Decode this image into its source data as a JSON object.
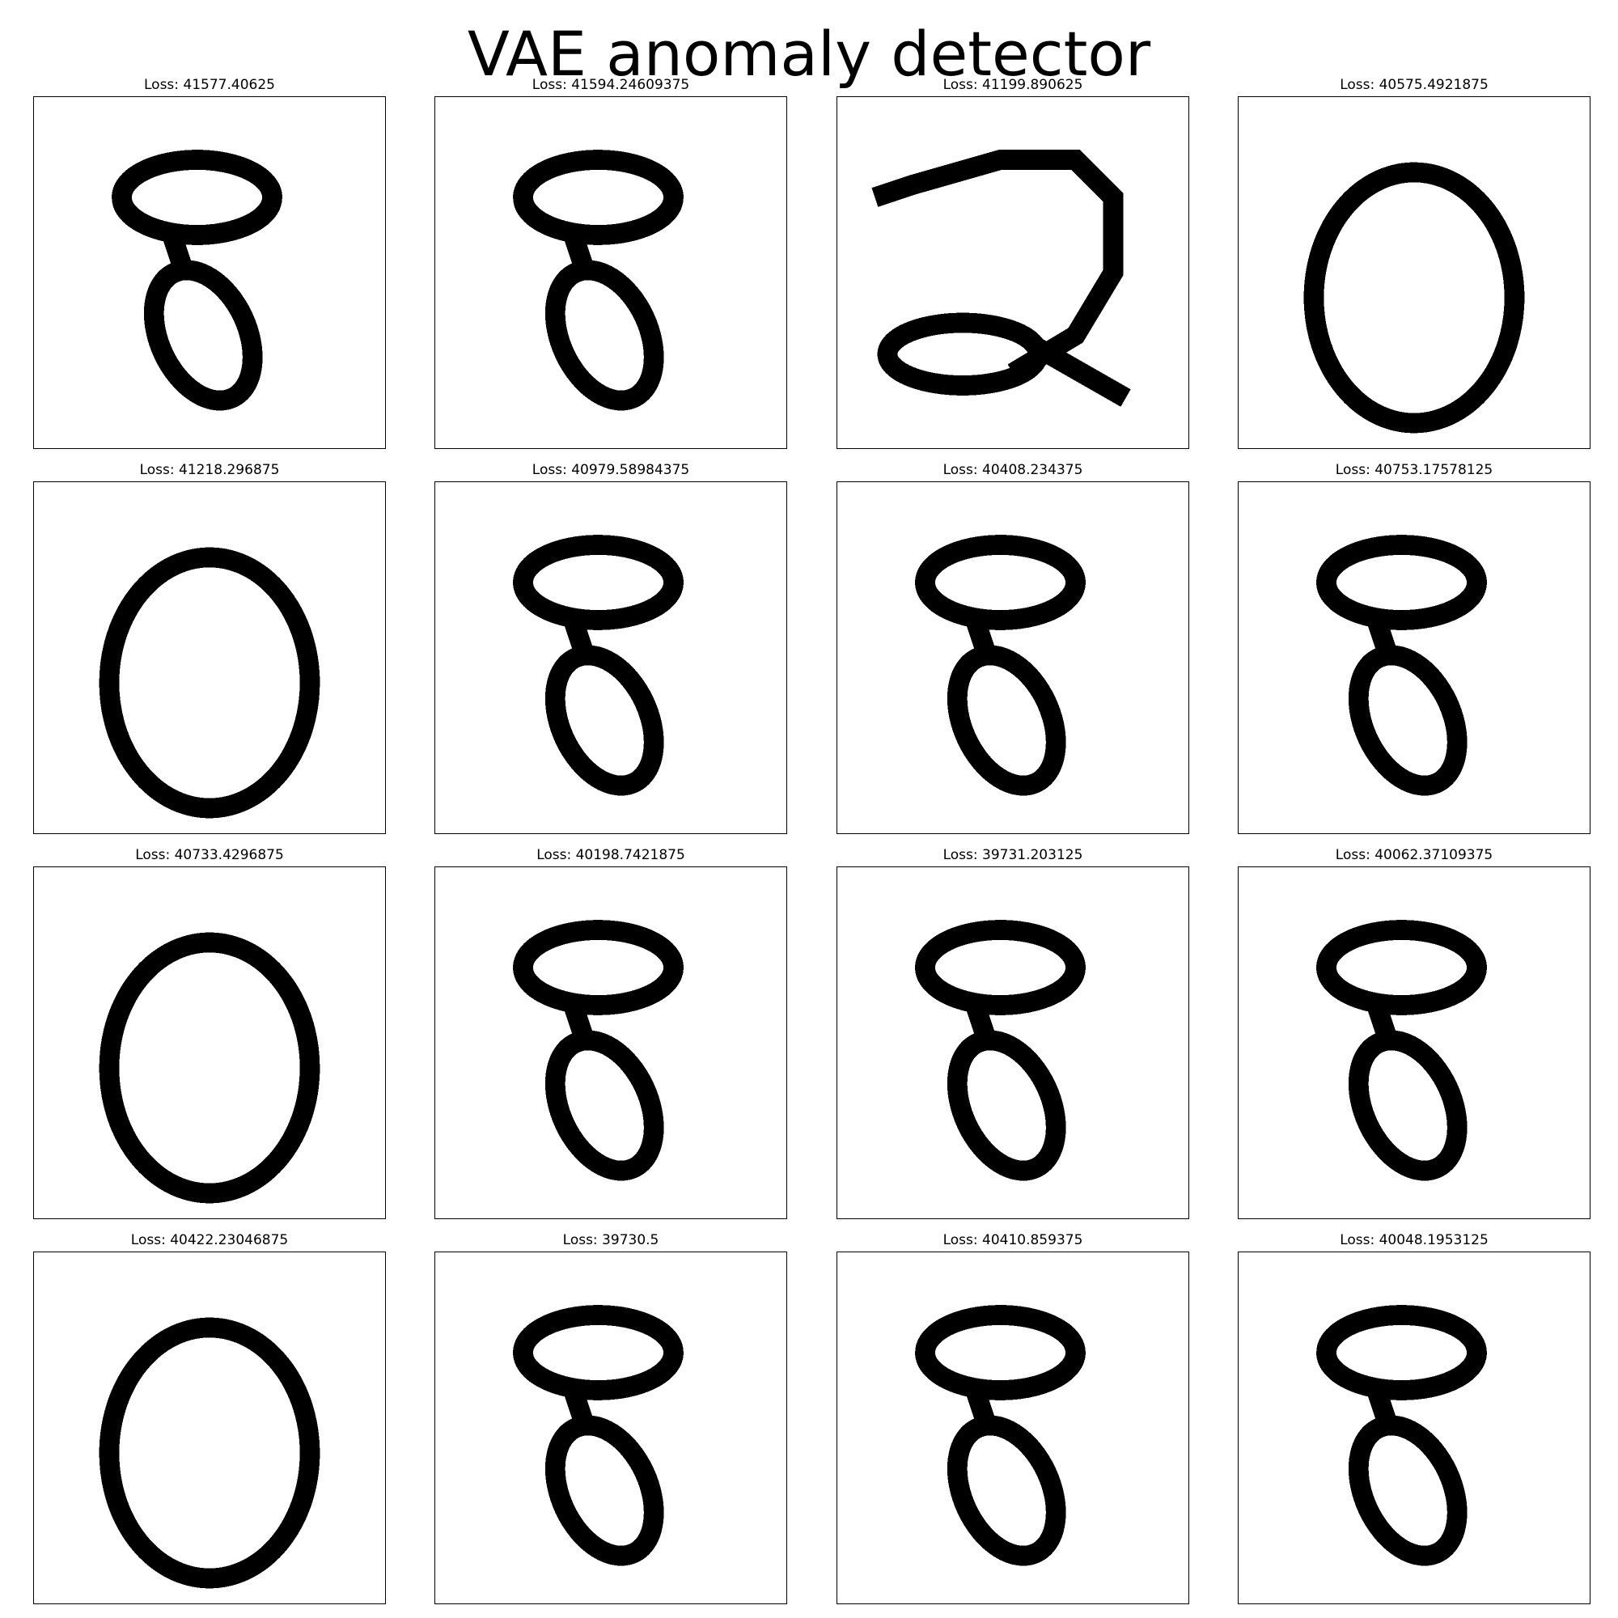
{
  "title": "VAE anomaly detector",
  "panels": [
    {
      "loss": "Loss: 41577.40625",
      "digit": "eight"
    },
    {
      "loss": "Loss: 41594.24609375",
      "digit": "eight"
    },
    {
      "loss": "Loss: 41199.890625",
      "digit": "two"
    },
    {
      "loss": "Loss: 40575.4921875",
      "digit": "zero"
    },
    {
      "loss": "Loss: 41218.296875",
      "digit": "zero"
    },
    {
      "loss": "Loss: 40979.58984375",
      "digit": "eight"
    },
    {
      "loss": "Loss: 40408.234375",
      "digit": "eight"
    },
    {
      "loss": "Loss: 40753.17578125",
      "digit": "eight"
    },
    {
      "loss": "Loss: 40733.4296875",
      "digit": "zero"
    },
    {
      "loss": "Loss: 40198.7421875",
      "digit": "eight"
    },
    {
      "loss": "Loss: 39731.203125",
      "digit": "eight"
    },
    {
      "loss": "Loss: 40062.37109375",
      "digit": "eight"
    },
    {
      "loss": "Loss: 40422.23046875",
      "digit": "zero"
    },
    {
      "loss": "Loss: 39730.5",
      "digit": "eight"
    },
    {
      "loss": "Loss: 40410.859375",
      "digit": "eight"
    },
    {
      "loss": "Loss: 40048.1953125",
      "digit": "eight"
    }
  ]
}
